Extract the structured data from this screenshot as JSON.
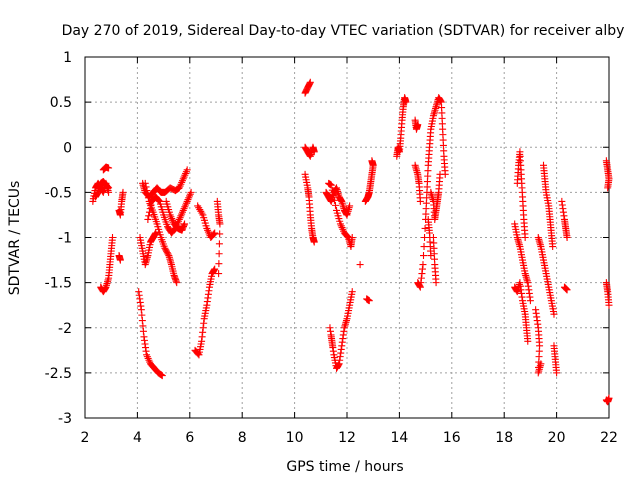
{
  "chart_data": {
    "type": "scatter",
    "title": "Day 270 of 2019, Sidereal Day-to-day VTEC variation (SDTVAR) for receiver alby",
    "xlabel": "GPS time / hours",
    "ylabel": "SDTVAR / TECUs",
    "xlim": [
      2,
      22
    ],
    "ylim": [
      -3,
      1
    ],
    "x_ticks": [
      2,
      4,
      6,
      8,
      10,
      12,
      14,
      16,
      18,
      20,
      22
    ],
    "y_ticks": [
      -3,
      -2.5,
      -2,
      -1.5,
      -1,
      -0.5,
      0,
      0.5,
      1
    ],
    "y_tick_labels": [
      "-3",
      "-2.5",
      "-2",
      "-1.5",
      "-1",
      "-0.5",
      "0",
      "0.5",
      "1"
    ],
    "grid": true,
    "marker": "+",
    "color": "#ff0000",
    "series": [
      {
        "name": "SDTVAR",
        "segments": [
          [
            [
              2.3,
              -0.6
            ],
            [
              2.4,
              -0.45
            ],
            [
              2.5,
              -0.4
            ],
            [
              2.6,
              -0.45
            ],
            [
              2.7,
              -0.5
            ],
            [
              2.8,
              -0.4
            ],
            [
              2.9,
              -0.5
            ]
          ],
          [
            [
              2.4,
              -0.55
            ],
            [
              2.5,
              -0.5
            ],
            [
              2.6,
              -0.4
            ],
            [
              2.7,
              -0.38
            ],
            [
              2.8,
              -0.42
            ],
            [
              2.9,
              -0.45
            ]
          ],
          [
            [
              2.7,
              -0.25
            ],
            [
              2.8,
              -0.22
            ],
            [
              2.9,
              -0.23
            ]
          ],
          [
            [
              2.6,
              -1.55
            ],
            [
              2.7,
              -1.6
            ],
            [
              2.8,
              -1.55
            ],
            [
              2.9,
              -1.45
            ],
            [
              2.95,
              -1.3
            ],
            [
              3.0,
              -1.15
            ],
            [
              3.05,
              -1.0
            ]
          ],
          [
            [
              3.3,
              -0.7
            ],
            [
              3.35,
              -0.75
            ],
            [
              3.4,
              -0.6
            ],
            [
              3.45,
              -0.5
            ]
          ],
          [
            [
              3.3,
              -1.2
            ],
            [
              3.35,
              -1.25
            ]
          ],
          [
            [
              4.05,
              -1.6
            ],
            [
              4.15,
              -1.8
            ],
            [
              4.25,
              -2.1
            ],
            [
              4.35,
              -2.3
            ],
            [
              4.5,
              -2.4
            ],
            [
              4.65,
              -2.45
            ],
            [
              4.8,
              -2.5
            ],
            [
              4.95,
              -2.53
            ]
          ],
          [
            [
              4.1,
              -1.0
            ],
            [
              4.2,
              -1.15
            ],
            [
              4.3,
              -1.3
            ],
            [
              4.4,
              -1.2
            ],
            [
              4.5,
              -1.05
            ],
            [
              4.6,
              -1.0
            ],
            [
              4.7,
              -0.95
            ]
          ],
          [
            [
              4.2,
              -0.4
            ],
            [
              4.3,
              -0.5
            ],
            [
              4.45,
              -0.55
            ],
            [
              4.6,
              -0.5
            ],
            [
              4.75,
              -0.45
            ],
            [
              4.9,
              -0.5
            ],
            [
              5.05,
              -0.5
            ],
            [
              5.25,
              -0.45
            ],
            [
              5.45,
              -0.48
            ],
            [
              5.6,
              -0.45
            ],
            [
              5.75,
              -0.35
            ],
            [
              5.9,
              -0.25
            ]
          ],
          [
            [
              4.3,
              -0.4
            ],
            [
              4.45,
              -0.6
            ],
            [
              4.6,
              -0.72
            ],
            [
              4.75,
              -0.85
            ],
            [
              4.9,
              -1.0
            ],
            [
              5.05,
              -1.12
            ],
            [
              5.2,
              -1.2
            ],
            [
              5.3,
              -1.3
            ],
            [
              5.4,
              -1.42
            ],
            [
              5.5,
              -1.5
            ]
          ],
          [
            [
              4.4,
              -0.8
            ],
            [
              4.55,
              -0.6
            ],
            [
              4.7,
              -0.55
            ],
            [
              4.85,
              -0.6
            ],
            [
              5.0,
              -0.75
            ],
            [
              5.15,
              -0.88
            ],
            [
              5.3,
              -0.95
            ],
            [
              5.45,
              -0.9
            ],
            [
              5.6,
              -0.8
            ],
            [
              5.75,
              -0.7
            ],
            [
              5.9,
              -0.6
            ],
            [
              6.05,
              -0.5
            ]
          ],
          [
            [
              5.1,
              -0.6
            ],
            [
              5.25,
              -0.75
            ],
            [
              5.4,
              -0.85
            ],
            [
              5.55,
              -0.9
            ],
            [
              5.7,
              -0.92
            ],
            [
              5.8,
              -0.85
            ]
          ],
          [
            [
              6.2,
              -2.25
            ],
            [
              6.35,
              -2.3
            ],
            [
              6.45,
              -2.15
            ],
            [
              6.55,
              -1.9
            ],
            [
              6.65,
              -1.75
            ],
            [
              6.75,
              -1.55
            ],
            [
              6.85,
              -1.4
            ],
            [
              6.95,
              -1.35
            ]
          ],
          [
            [
              6.3,
              -0.65
            ],
            [
              6.5,
              -0.75
            ],
            [
              6.65,
              -0.9
            ],
            [
              6.8,
              -1.0
            ],
            [
              6.95,
              -0.95
            ]
          ],
          [
            [
              7.05,
              -0.6
            ],
            [
              7.1,
              -0.75
            ],
            [
              7.15,
              -0.85
            ],
            [
              7.1,
              -1.4
            ]
          ],
          [
            [
              10.4,
              0.6
            ],
            [
              10.5,
              0.66
            ],
            [
              10.6,
              0.72
            ]
          ],
          [
            [
              10.4,
              0.0
            ],
            [
              10.5,
              -0.05
            ],
            [
              10.6,
              -0.1
            ],
            [
              10.7,
              0.0
            ],
            [
              10.75,
              -0.05
            ]
          ],
          [
            [
              10.4,
              -0.3
            ],
            [
              10.5,
              -0.45
            ],
            [
              10.55,
              -0.55
            ],
            [
              10.6,
              -0.75
            ],
            [
              10.65,
              -0.9
            ],
            [
              10.7,
              -1.0
            ],
            [
              10.75,
              -1.05
            ]
          ],
          [
            [
              11.2,
              -0.5
            ],
            [
              11.3,
              -0.55
            ],
            [
              11.4,
              -0.6
            ],
            [
              11.5,
              -0.5
            ],
            [
              11.6,
              -0.45
            ],
            [
              11.7,
              -0.55
            ],
            [
              11.8,
              -0.6
            ],
            [
              11.9,
              -0.7
            ],
            [
              12.0,
              -0.75
            ],
            [
              12.1,
              -0.65
            ]
          ],
          [
            [
              11.3,
              -0.4
            ],
            [
              11.4,
              -0.42
            ],
            [
              11.6,
              -0.7
            ],
            [
              11.75,
              -0.85
            ],
            [
              11.9,
              -0.95
            ],
            [
              12.05,
              -1.0
            ],
            [
              12.15,
              -1.1
            ],
            [
              12.2,
              -1.0
            ]
          ],
          [
            [
              11.4,
              -2.1
            ],
            [
              11.5,
              -2.3
            ],
            [
              11.6,
              -2.45
            ],
            [
              11.7,
              -2.4
            ],
            [
              11.8,
              -2.2
            ],
            [
              11.9,
              -2.0
            ],
            [
              12.0,
              -1.9
            ],
            [
              12.1,
              -1.75
            ],
            [
              12.2,
              -1.6
            ]
          ],
          [
            [
              11.35,
              -2.0
            ],
            [
              11.45,
              -2.2
            ]
          ],
          [
            [
              12.7,
              -0.6
            ],
            [
              12.8,
              -0.55
            ],
            [
              12.85,
              -0.5
            ],
            [
              12.9,
              -0.4
            ],
            [
              12.95,
              -0.3
            ],
            [
              13.0,
              -0.2
            ],
            [
              12.95,
              -0.15
            ]
          ],
          [
            [
              12.75,
              -1.68
            ],
            [
              12.85,
              -1.7
            ]
          ],
          [
            [
              12.5,
              -1.3
            ]
          ],
          [
            [
              13.9,
              -0.1
            ],
            [
              13.95,
              0.0
            ],
            [
              14.0,
              -0.05
            ],
            [
              14.05,
              0.1
            ],
            [
              14.1,
              0.3
            ],
            [
              14.15,
              0.45
            ],
            [
              14.2,
              0.55
            ],
            [
              14.25,
              0.5
            ]
          ],
          [
            [
              14.6,
              -0.2
            ],
            [
              14.7,
              -0.3
            ],
            [
              14.75,
              -0.4
            ],
            [
              14.8,
              -0.6
            ]
          ],
          [
            [
              14.7,
              -1.5
            ],
            [
              14.8,
              -1.55
            ],
            [
              14.9,
              -1.3
            ],
            [
              15.0,
              -0.8
            ],
            [
              15.05,
              -0.5
            ],
            [
              15.1,
              -0.2
            ],
            [
              15.15,
              0.0
            ],
            [
              15.2,
              0.2
            ],
            [
              15.3,
              0.35
            ],
            [
              15.4,
              0.45
            ],
            [
              15.5,
              0.55
            ],
            [
              15.6,
              0.5
            ],
            [
              15.65,
              0.2
            ],
            [
              15.7,
              -0.1
            ],
            [
              15.75,
              -0.3
            ]
          ],
          [
            [
              15.2,
              -0.5
            ],
            [
              15.3,
              -0.6
            ],
            [
              15.35,
              -0.8
            ],
            [
              15.4,
              -0.7
            ],
            [
              15.45,
              -0.6
            ],
            [
              15.5,
              -0.5
            ],
            [
              15.55,
              -0.3
            ]
          ],
          [
            [
              14.6,
              0.3
            ],
            [
              14.65,
              0.2
            ],
            [
              14.7,
              0.25
            ]
          ],
          [
            [
              15.3,
              -1.0
            ],
            [
              15.35,
              -1.3
            ],
            [
              15.4,
              -1.5
            ]
          ],
          [
            [
              15.1,
              -0.8
            ],
            [
              15.15,
              -0.95
            ],
            [
              15.2,
              -1.2
            ]
          ],
          [
            [
              18.4,
              -0.85
            ],
            [
              18.5,
              -1.0
            ],
            [
              18.6,
              -1.1
            ],
            [
              18.7,
              -1.25
            ],
            [
              18.8,
              -1.4
            ],
            [
              18.9,
              -1.5
            ],
            [
              19.0,
              -1.7
            ]
          ],
          [
            [
              18.4,
              -1.55
            ],
            [
              18.5,
              -1.6
            ],
            [
              18.6,
              -1.5
            ],
            [
              18.7,
              -1.7
            ],
            [
              18.8,
              -1.85
            ],
            [
              18.85,
              -2.0
            ],
            [
              18.9,
              -2.15
            ]
          ],
          [
            [
              18.5,
              -0.4
            ],
            [
              18.55,
              -0.2
            ],
            [
              18.6,
              -0.05
            ],
            [
              18.65,
              -0.3
            ],
            [
              18.7,
              -0.55
            ],
            [
              18.75,
              -0.8
            ],
            [
              18.8,
              -1.0
            ]
          ],
          [
            [
              19.2,
              -1.8
            ],
            [
              19.3,
              -2.0
            ],
            [
              19.35,
              -2.2
            ],
            [
              19.3,
              -2.5
            ],
            [
              19.4,
              -2.4
            ]
          ],
          [
            [
              19.3,
              -1.0
            ],
            [
              19.4,
              -1.1
            ],
            [
              19.5,
              -1.25
            ],
            [
              19.6,
              -1.4
            ],
            [
              19.7,
              -1.55
            ],
            [
              19.8,
              -1.7
            ],
            [
              19.9,
              -1.85
            ]
          ],
          [
            [
              19.5,
              -0.2
            ],
            [
              19.55,
              -0.35
            ],
            [
              19.6,
              -0.5
            ],
            [
              19.7,
              -0.65
            ],
            [
              19.75,
              -0.8
            ],
            [
              19.8,
              -0.95
            ],
            [
              19.85,
              -1.1
            ]
          ],
          [
            [
              19.9,
              -2.2
            ],
            [
              19.95,
              -2.35
            ],
            [
              20.0,
              -2.5
            ]
          ],
          [
            [
              20.2,
              -0.6
            ],
            [
              20.3,
              -0.8
            ],
            [
              20.35,
              -0.9
            ],
            [
              20.4,
              -1.0
            ]
          ],
          [
            [
              20.3,
              -1.55
            ],
            [
              20.4,
              -1.58
            ]
          ],
          [
            [
              21.9,
              -0.15
            ],
            [
              21.95,
              -0.25
            ],
            [
              22.0,
              -0.35
            ],
            [
              21.95,
              -0.45
            ]
          ],
          [
            [
              21.9,
              -1.5
            ],
            [
              21.95,
              -1.6
            ],
            [
              22.0,
              -1.75
            ]
          ],
          [
            [
              21.9,
              -2.8
            ],
            [
              21.95,
              -2.82
            ],
            [
              22.0,
              -2.78
            ]
          ]
        ]
      }
    ]
  }
}
